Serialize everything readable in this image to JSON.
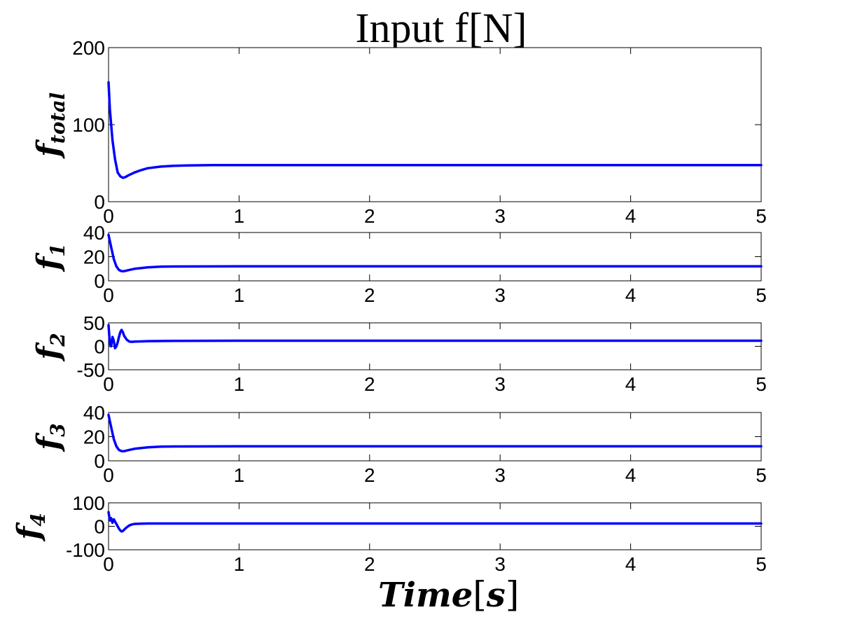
{
  "title": "Input f[N]",
  "xlabel": "Time",
  "xlabel_unit": "s",
  "line_color": "#0000ff",
  "chart_data": [
    {
      "type": "line",
      "ylabel": "f",
      "ylabel_sub": "total",
      "xlim": [
        0,
        5
      ],
      "ylim": [
        0,
        200
      ],
      "xticks": [
        "0",
        "1",
        "2",
        "3",
        "4",
        "5"
      ],
      "yticks": [
        "0",
        "100",
        "200"
      ],
      "xtick_values": [
        0,
        1,
        2,
        3,
        4,
        5
      ],
      "ytick_values": [
        0,
        100,
        200
      ],
      "series": [
        {
          "name": "f_total",
          "x": [
            0,
            0.01,
            0.03,
            0.05,
            0.07,
            0.09,
            0.11,
            0.13,
            0.15,
            0.2,
            0.25,
            0.3,
            0.4,
            0.5,
            0.6,
            0.8,
            1,
            2,
            3,
            4,
            5
          ],
          "y": [
            155,
            120,
            80,
            55,
            38,
            33,
            31,
            32,
            34,
            38,
            41,
            43.5,
            45.5,
            46.5,
            47,
            47.5,
            47.5,
            47.5,
            47.5,
            47.5,
            47.5
          ]
        }
      ]
    },
    {
      "type": "line",
      "ylabel": "f",
      "ylabel_sub": "1",
      "xlim": [
        0,
        5
      ],
      "ylim": [
        0,
        40
      ],
      "xticks": [
        "0",
        "1",
        "2",
        "3",
        "4",
        "5"
      ],
      "yticks": [
        "0",
        "20",
        "40"
      ],
      "xtick_values": [
        0,
        1,
        2,
        3,
        4,
        5
      ],
      "ytick_values": [
        0,
        20,
        40
      ],
      "series": [
        {
          "name": "f_1",
          "x": [
            0,
            0.02,
            0.04,
            0.06,
            0.08,
            0.1,
            0.12,
            0.15,
            0.2,
            0.3,
            0.4,
            0.5,
            1,
            2,
            3,
            4,
            5
          ],
          "y": [
            38,
            28,
            18,
            12,
            9,
            8,
            8,
            8.8,
            10,
            11.2,
            11.7,
            11.9,
            12,
            12,
            12,
            12,
            12
          ]
        }
      ]
    },
    {
      "type": "line",
      "ylabel": "f",
      "ylabel_sub": "2",
      "xlim": [
        0,
        5
      ],
      "ylim": [
        -50,
        50
      ],
      "xticks": [
        "0",
        "1",
        "2",
        "3",
        "4",
        "5"
      ],
      "yticks": [
        "-50",
        "0",
        "50"
      ],
      "xtick_values": [
        0,
        1,
        2,
        3,
        4,
        5
      ],
      "ytick_values": [
        -50,
        0,
        50
      ],
      "series": [
        {
          "name": "f_2",
          "x": [
            0,
            0.01,
            0.02,
            0.03,
            0.04,
            0.05,
            0.06,
            0.07,
            0.08,
            0.09,
            0.1,
            0.11,
            0.12,
            0.14,
            0.16,
            0.18,
            0.2,
            0.25,
            0.3,
            0.5,
            1,
            2,
            3,
            4,
            5
          ],
          "y": [
            45,
            5,
            0,
            20,
            12,
            -4,
            0,
            8,
            20,
            30,
            35,
            30,
            22,
            14,
            10,
            9.5,
            10,
            10.5,
            11,
            11.5,
            12,
            12,
            12,
            12,
            12
          ]
        }
      ]
    },
    {
      "type": "line",
      "ylabel": "f",
      "ylabel_sub": "3",
      "xlim": [
        0,
        5
      ],
      "ylim": [
        0,
        40
      ],
      "xticks": [
        "0",
        "1",
        "2",
        "3",
        "4",
        "5"
      ],
      "yticks": [
        "0",
        "20",
        "40"
      ],
      "xtick_values": [
        0,
        1,
        2,
        3,
        4,
        5
      ],
      "ytick_values": [
        0,
        20,
        40
      ],
      "series": [
        {
          "name": "f_3",
          "x": [
            0,
            0.02,
            0.04,
            0.06,
            0.08,
            0.1,
            0.12,
            0.15,
            0.2,
            0.3,
            0.4,
            0.5,
            1,
            2,
            3,
            4,
            5
          ],
          "y": [
            38,
            28,
            18,
            12,
            9,
            8,
            8,
            8.8,
            10,
            11.2,
            11.7,
            11.9,
            12,
            12,
            12,
            12,
            12
          ]
        }
      ]
    },
    {
      "type": "line",
      "ylabel": "f",
      "ylabel_sub": "4",
      "xlim": [
        0,
        5
      ],
      "ylim": [
        -100,
        100
      ],
      "xticks": [
        "0",
        "1",
        "2",
        "3",
        "4",
        "5"
      ],
      "yticks": [
        "-100",
        "0",
        "100"
      ],
      "xtick_values": [
        0,
        1,
        2,
        3,
        4,
        5
      ],
      "ytick_values": [
        -100,
        0,
        100
      ],
      "series": [
        {
          "name": "f_4",
          "x": [
            0,
            0.01,
            0.02,
            0.03,
            0.04,
            0.05,
            0.06,
            0.07,
            0.08,
            0.09,
            0.1,
            0.11,
            0.12,
            0.14,
            0.16,
            0.18,
            0.2,
            0.25,
            0.3,
            0.5,
            1,
            2,
            3,
            4,
            5
          ],
          "y": [
            60,
            25,
            35,
            15,
            30,
            20,
            10,
            0,
            -10,
            -18,
            -22,
            -20,
            -14,
            -4,
            4,
            8,
            10,
            11,
            12,
            12,
            12,
            12,
            12,
            12,
            12
          ]
        }
      ]
    }
  ]
}
